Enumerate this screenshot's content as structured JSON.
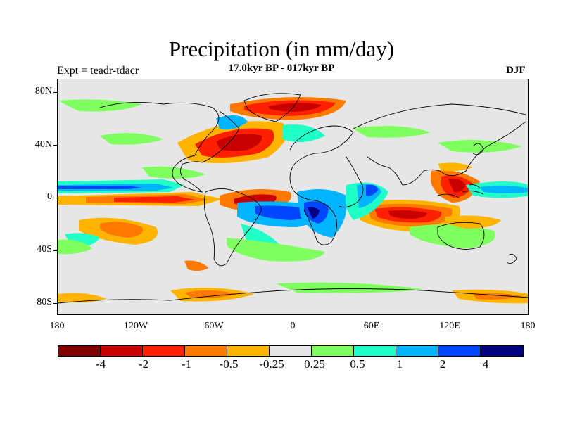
{
  "title": "Precipitation (in mm/day)",
  "subtitle": "17.0kyr BP - 017kyr BP",
  "experiment_label": "Expt = teadr-tdacr",
  "season": "DJF",
  "map": {
    "projection": "cylindrical equidistant",
    "lat_labels": [
      "80N",
      "40N",
      "0",
      "40S",
      "80S"
    ],
    "lon_labels": [
      "180",
      "120W",
      "60W",
      "0",
      "60E",
      "120E",
      "180"
    ],
    "background_color": "#e6e6e6"
  },
  "colorbar": {
    "colors": [
      "#800000",
      "#c80000",
      "#ff2000",
      "#ff7800",
      "#ffb400",
      "#e6e6e6",
      "#80ff60",
      "#20ffc8",
      "#00b4ff",
      "#0046ff",
      "#000080"
    ],
    "labels": [
      "-4",
      "-2",
      "-1",
      "-0.5",
      "-0.25",
      "0.25",
      "0.5",
      "1",
      "2",
      "4"
    ]
  }
}
